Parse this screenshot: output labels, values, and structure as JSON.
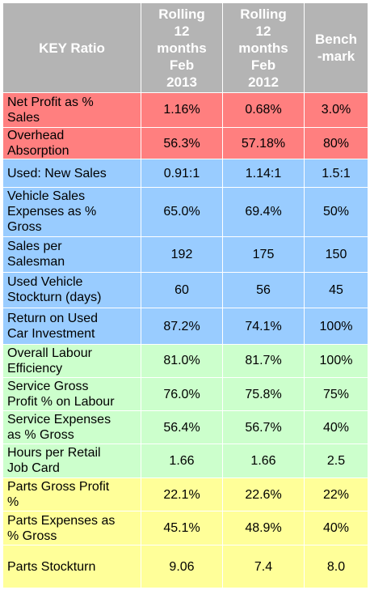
{
  "colors": {
    "header": "#b4b4b4",
    "red": "#ff7f7f",
    "blue": "#99ccff",
    "green": "#ccffcc",
    "yellow": "#ffff99"
  },
  "header": {
    "key_ratio": "KEY Ratio",
    "col_2013": "Rolling\n12\nmonths\nFeb\n2013",
    "col_2012": "Rolling\n12\nmonths\nFeb\n2012",
    "col_benchmark": "Bench\n-mark"
  },
  "rows": [
    {
      "label": "Net Profit as %\nSales",
      "v2013": "1.16%",
      "v2012": "0.68%",
      "bench": "3.0%",
      "group": "red"
    },
    {
      "label": "Overhead\nAbsorption",
      "v2013": "56.3%",
      "v2012": "57.18%",
      "bench": "80%",
      "group": "red"
    },
    {
      "label": "Used: New Sales",
      "v2013": "0.91:1",
      "v2012": "1.14:1",
      "bench": "1.5:1",
      "group": "blue"
    },
    {
      "label": "Vehicle Sales\nExpenses as %\nGross",
      "v2013": "65.0%",
      "v2012": "69.4%",
      "bench": "50%",
      "group": "blue"
    },
    {
      "label": "Sales per\nSalesman",
      "v2013": "192",
      "v2012": "175",
      "bench": "150",
      "group": "blue"
    },
    {
      "label": "Used Vehicle\nStockturn (days)",
      "v2013": "60",
      "v2012": "56",
      "bench": "45",
      "group": "blue"
    },
    {
      "label": "Return on Used\nCar Investment",
      "v2013": "87.2%",
      "v2012": "74.1%",
      "bench": "100%",
      "group": "blue"
    },
    {
      "label": "Overall Labour\nEfficiency",
      "v2013": "81.0%",
      "v2012": "81.7%",
      "bench": "100%",
      "group": "green"
    },
    {
      "label": "Service Gross\nProfit % on Labour",
      "v2013": "76.0%",
      "v2012": "75.8%",
      "bench": "75%",
      "group": "green"
    },
    {
      "label": "Service Expenses\nas % Gross",
      "v2013": "56.4%",
      "v2012": "56.7%",
      "bench": "40%",
      "group": "green"
    },
    {
      "label": "Hours per Retail\nJob Card",
      "v2013": "1.66",
      "v2012": "1.66",
      "bench": "2.5",
      "group": "green"
    },
    {
      "label": "Parts Gross Profit\n%",
      "v2013": "22.1%",
      "v2012": "22.6%",
      "bench": "22%",
      "group": "yellow"
    },
    {
      "label": "Parts Expenses as\n% Gross",
      "v2013": "45.1%",
      "v2012": "48.9%",
      "bench": "40%",
      "group": "yellow"
    },
    {
      "label": "Parts Stockturn",
      "v2013": "9.06",
      "v2012": "7.4",
      "bench": "8.0",
      "group": "yellow"
    }
  ]
}
